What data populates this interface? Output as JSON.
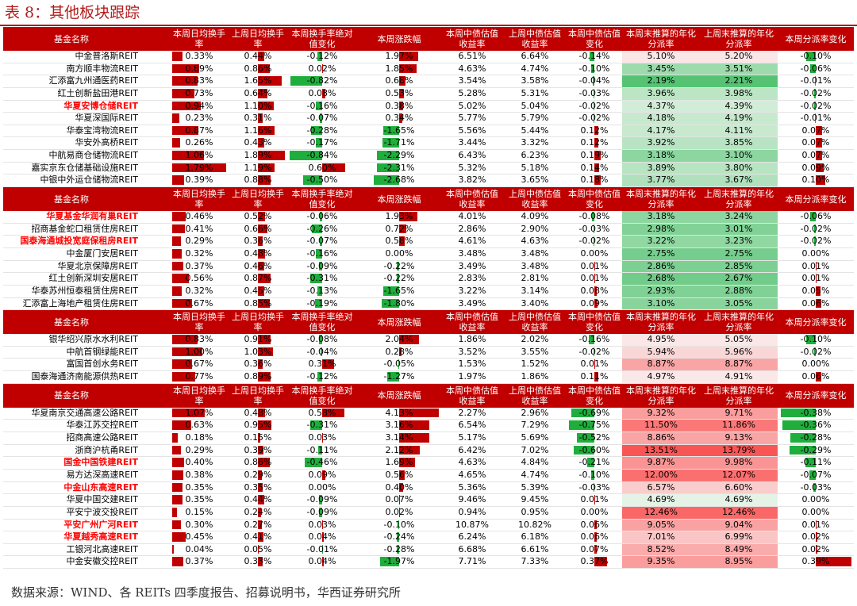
{
  "title": "表 8：其他板块跟踪",
  "source": "数据来源：WIND、各 REITs 四季度报告、招募说明书，华西证券研究所",
  "colors": {
    "header_bg": "#c00000",
    "bar_red": "#c00000",
    "bar_green": "#1fae3c"
  },
  "headers": [
    "基金名称",
    "本周日均换手率",
    "上周日均换手率",
    "本周换手率绝对值变化",
    "本周涨跌幅",
    "本周中债估值收益率",
    "上周中债估值收益率",
    "本周中债估值变化",
    "本周末推算的年化分派率",
    "上周末推算的年化分派率",
    "本周分派率变化"
  ],
  "sections": [
    {
      "rows": [
        {
          "name": "中金普洛斯REIT",
          "red": false,
          "v": [
            "0.33%",
            "0.44%",
            "-0.12%",
            "1.97%",
            "6.51%",
            "6.64%",
            "-0.14%",
            "5.10%",
            "5.20%",
            "-0.10%"
          ]
        },
        {
          "name": "南方顺丰物流REIT",
          "red": false,
          "v": [
            "0.89%",
            "0.86%",
            "0.02%",
            "1.85%",
            "4.63%",
            "4.74%",
            "-0.10%",
            "3.45%",
            "3.51%",
            "-0.06%"
          ]
        },
        {
          "name": "汇添富九州通医药REIT",
          "red": false,
          "v": [
            "0.83%",
            "1.65%",
            "-0.82%",
            "0.68%",
            "3.54%",
            "3.58%",
            "-0.04%",
            "2.19%",
            "2.21%",
            "-0.01%"
          ]
        },
        {
          "name": "红土创新盐田港REIT",
          "red": false,
          "v": [
            "0.73%",
            "0.64%",
            "0.08%",
            "0.53%",
            "5.28%",
            "5.31%",
            "-0.03%",
            "3.96%",
            "3.98%",
            "-0.02%"
          ]
        },
        {
          "name": "华夏安博仓储REIT",
          "red": true,
          "v": [
            "0.94%",
            "1.10%",
            "-0.16%",
            "0.38%",
            "5.02%",
            "5.04%",
            "-0.02%",
            "4.37%",
            "4.39%",
            "-0.02%"
          ]
        },
        {
          "name": "华夏深国际REIT",
          "red": false,
          "v": [
            "0.23%",
            "0.31%",
            "-0.07%",
            "0.34%",
            "5.77%",
            "5.79%",
            "-0.02%",
            "4.18%",
            "4.19%",
            "-0.01%"
          ]
        },
        {
          "name": "华泰宝湾物流REIT",
          "red": false,
          "v": [
            "0.87%",
            "1.16%",
            "-0.28%",
            "-1.65%",
            "5.56%",
            "5.44%",
            "0.12%",
            "4.17%",
            "4.11%",
            "0.07%"
          ]
        },
        {
          "name": "华安外高桥REIT",
          "red": false,
          "v": [
            "0.26%",
            "0.43%",
            "-0.17%",
            "-1.71%",
            "3.44%",
            "3.32%",
            "0.12%",
            "3.92%",
            "3.85%",
            "0.07%"
          ]
        },
        {
          "name": "中航易商仓储物流REIT",
          "red": false,
          "v": [
            "1.06%",
            "1.89%",
            "-0.84%",
            "-2.29%",
            "6.43%",
            "6.23%",
            "0.19%",
            "3.18%",
            "3.10%",
            "0.07%"
          ]
        },
        {
          "name": "嘉实京东仓储基础设施REIT",
          "red": false,
          "v": [
            "1.79%",
            "1.19%",
            "0.60%",
            "-2.31%",
            "5.32%",
            "5.18%",
            "0.14%",
            "3.89%",
            "3.80%",
            "0.09%"
          ]
        },
        {
          "name": "中银中外运仓储物流REIT",
          "red": false,
          "v": [
            "0.39%",
            "0.88%",
            "-0.50%",
            "-2.68%",
            "3.82%",
            "3.65%",
            "0.18%",
            "3.77%",
            "3.67%",
            "0.10%"
          ]
        }
      ]
    },
    {
      "rows": [
        {
          "name": "华夏基金华润有巢REIT",
          "red": true,
          "v": [
            "0.46%",
            "0.52%",
            "-0.06%",
            "1.93%",
            "4.01%",
            "4.09%",
            "-0.08%",
            "3.18%",
            "3.24%",
            "-0.06%"
          ]
        },
        {
          "name": "招商基金蛇口租赁住房REIT",
          "red": false,
          "v": [
            "0.41%",
            "0.66%",
            "-0.26%",
            "0.72%",
            "2.86%",
            "2.90%",
            "-0.03%",
            "2.98%",
            "3.01%",
            "-0.02%"
          ]
        },
        {
          "name": "国泰海通城投宽庭保租房REIT",
          "red": true,
          "v": [
            "0.29%",
            "0.36%",
            "-0.07%",
            "0.58%",
            "4.61%",
            "4.63%",
            "-0.02%",
            "3.22%",
            "3.23%",
            "-0.02%"
          ]
        },
        {
          "name": "中金厦门安居REIT",
          "red": false,
          "v": [
            "0.32%",
            "0.48%",
            "-0.16%",
            "0.00%",
            "3.48%",
            "3.48%",
            "0.00%",
            "2.75%",
            "2.75%",
            "0.00%"
          ]
        },
        {
          "name": "华夏北京保障房REIT",
          "red": false,
          "v": [
            "0.37%",
            "0.46%",
            "-0.09%",
            "-0.22%",
            "3.49%",
            "3.48%",
            "0.01%",
            "2.86%",
            "2.85%",
            "0.01%"
          ]
        },
        {
          "name": "红土创新深圳安居REIT",
          "red": false,
          "v": [
            "0.56%",
            "0.87%",
            "-0.31%",
            "-0.22%",
            "2.83%",
            "2.81%",
            "0.01%",
            "2.68%",
            "2.67%",
            "0.01%"
          ]
        },
        {
          "name": "华泰苏州恒泰租赁住房REIT",
          "red": false,
          "v": [
            "0.32%",
            "0.45%",
            "-0.13%",
            "-1.65%",
            "3.22%",
            "3.14%",
            "0.08%",
            "2.93%",
            "2.88%",
            "0.05%"
          ]
        },
        {
          "name": "汇添富上海地产租赁住房REIT",
          "red": false,
          "v": [
            "0.67%",
            "0.85%",
            "-0.19%",
            "-1.80%",
            "3.49%",
            "3.40%",
            "0.09%",
            "3.10%",
            "3.05%",
            "0.06%"
          ]
        }
      ]
    },
    {
      "rows": [
        {
          "name": "银华绍兴原水水利REIT",
          "red": false,
          "v": [
            "0.83%",
            "0.91%",
            "-0.08%",
            "2.04%",
            "1.86%",
            "2.02%",
            "-0.16%",
            "4.95%",
            "5.05%",
            "-0.10%"
          ]
        },
        {
          "name": "中航首钢绿能REIT",
          "red": false,
          "v": [
            "1.00%",
            "1.03%",
            "-0.04%",
            "0.28%",
            "3.52%",
            "3.55%",
            "-0.02%",
            "5.94%",
            "5.96%",
            "-0.02%"
          ]
        },
        {
          "name": "富国首创水务REIT",
          "red": false,
          "v": [
            "0.67%",
            "0.36%",
            "0.31%",
            "-0.05%",
            "1.53%",
            "1.52%",
            "0.01%",
            "8.87%",
            "8.87%",
            "0.00%"
          ]
        },
        {
          "name": "国泰海通济南能源供热REIT",
          "red": false,
          "v": [
            "0.77%",
            "0.89%",
            "-0.12%",
            "-1.27%",
            "1.97%",
            "1.86%",
            "0.11%",
            "4.97%",
            "4.91%",
            "0.06%"
          ]
        }
      ]
    },
    {
      "rows": [
        {
          "name": "华夏南京交通高速公路REIT",
          "red": false,
          "v": [
            "1.07%",
            "0.48%",
            "0.58%",
            "4.13%",
            "2.27%",
            "2.96%",
            "-0.69%",
            "9.32%",
            "9.71%",
            "-0.38%"
          ]
        },
        {
          "name": "华泰江苏交控REIT",
          "red": false,
          "v": [
            "0.63%",
            "0.95%",
            "-0.31%",
            "3.16%",
            "6.54%",
            "7.29%",
            "-0.75%",
            "11.50%",
            "11.86%",
            "-0.36%"
          ]
        },
        {
          "name": "招商高速公路REIT",
          "red": false,
          "v": [
            "0.18%",
            "0.15%",
            "0.03%",
            "3.14%",
            "5.17%",
            "5.69%",
            "-0.52%",
            "8.86%",
            "9.13%",
            "-0.28%"
          ]
        },
        {
          "name": "浙商沪杭甬REIT",
          "red": false,
          "v": [
            "0.29%",
            "0.39%",
            "-0.11%",
            "2.12%",
            "6.42%",
            "7.02%",
            "-0.60%",
            "13.51%",
            "13.79%",
            "-0.29%"
          ]
        },
        {
          "name": "国金中国铁建REIT",
          "red": true,
          "v": [
            "0.40%",
            "0.86%",
            "-0.46%",
            "1.69%",
            "4.63%",
            "4.84%",
            "-0.21%",
            "9.87%",
            "9.98%",
            "-0.11%"
          ]
        },
        {
          "name": "易方达深高速REIT",
          "red": false,
          "v": [
            "0.38%",
            "0.29%",
            "0.09%",
            "0.56%",
            "4.65%",
            "4.74%",
            "-0.10%",
            "12.00%",
            "12.07%",
            "-0.07%"
          ]
        },
        {
          "name": "中金山东高速REIT",
          "red": true,
          "v": [
            "0.35%",
            "0.35%",
            "0.00%",
            "0.40%",
            "5.36%",
            "5.39%",
            "-0.03%",
            "6.57%",
            "6.60%",
            "-0.03%"
          ]
        },
        {
          "name": "华夏中国交建REIT",
          "red": false,
          "v": [
            "0.35%",
            "0.44%",
            "-0.09%",
            "0.07%",
            "9.46%",
            "9.45%",
            "0.01%",
            "4.69%",
            "4.69%",
            "0.00%"
          ]
        },
        {
          "name": "平安宁波交投REIT",
          "red": false,
          "v": [
            "0.15%",
            "0.24%",
            "-0.09%",
            "0.02%",
            "0.94%",
            "0.95%",
            "0.00%",
            "12.46%",
            "12.46%",
            "0.00%"
          ]
        },
        {
          "name": "平安广州广河REIT",
          "red": true,
          "v": [
            "0.30%",
            "0.27%",
            "0.03%",
            "-0.10%",
            "10.87%",
            "10.82%",
            "0.06%",
            "9.05%",
            "9.04%",
            "0.01%"
          ]
        },
        {
          "name": "华夏越秀高速REIT",
          "red": true,
          "v": [
            "0.45%",
            "0.41%",
            "0.04%",
            "-0.24%",
            "6.24%",
            "6.18%",
            "0.06%",
            "7.01%",
            "6.99%",
            "0.02%"
          ]
        },
        {
          "name": "工银河北高速REIT",
          "red": false,
          "v": [
            "0.04%",
            "0.05%",
            "-0.01%",
            "-0.28%",
            "6.68%",
            "6.61%",
            "0.07%",
            "8.52%",
            "8.49%",
            "0.02%"
          ]
        },
        {
          "name": "中金安徽交控REIT",
          "red": false,
          "v": [
            "0.37%",
            "0.33%",
            "0.04%",
            "-1.97%",
            "7.71%",
            "7.33%",
            "0.37%",
            "9.35%",
            "8.95%",
            "0.39%"
          ]
        }
      ]
    }
  ]
}
